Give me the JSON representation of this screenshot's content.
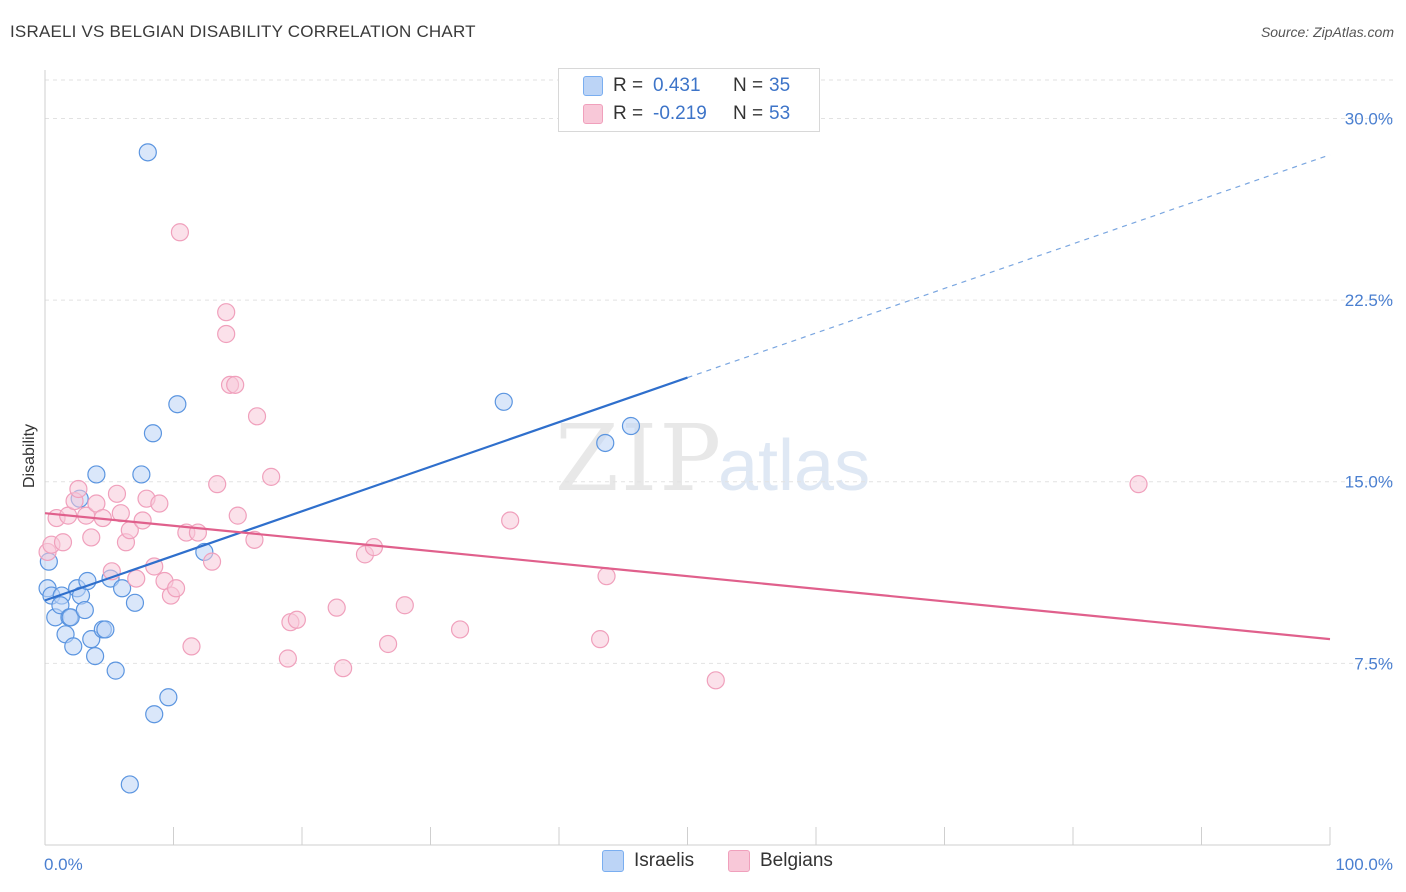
{
  "title": "ISRAELI VS BELGIAN DISABILITY CORRELATION CHART",
  "source": "Source: ZipAtlas.com",
  "watermark": {
    "zip": "ZIP",
    "atlas": "atlas"
  },
  "legend": {
    "rows": [
      {
        "r_label": "R =",
        "r_value": "0.431",
        "n_label": "N =",
        "n_value": "35",
        "color": "#7aaef0",
        "fill": "#bcd4f6"
      },
      {
        "r_label": "R =",
        "r_value": "-0.219",
        "n_label": "N =",
        "n_value": "53",
        "color": "#f0a0bc",
        "fill": "#f8c8d8"
      }
    ]
  },
  "bottom_legend": [
    {
      "label": "Israelis",
      "fill": "#bcd4f6",
      "stroke": "#7aaef0"
    },
    {
      "label": "Belgians",
      "fill": "#f8c8d8",
      "stroke": "#f0a0bc"
    }
  ],
  "chart_data": {
    "type": "scatter",
    "xlabel": "",
    "ylabel": "Disability",
    "xlim": [
      0,
      100
    ],
    "ylim": [
      0,
      32
    ],
    "x_tick_labels": [
      "0.0%",
      "100.0%"
    ],
    "y_ticks": [
      7.5,
      15.0,
      22.5,
      30.0
    ],
    "y_tick_labels": [
      "7.5%",
      "15.0%",
      "22.5%",
      "30.0%"
    ],
    "grid": true,
    "legend_placement": "top-center",
    "series": [
      {
        "name": "Israelis",
        "color": "#5b95e0",
        "fill": "#bcd4f6",
        "trend": {
          "x0": 0,
          "y0": 10.1,
          "x1": 50,
          "y1": 19.3,
          "dash_to_x": 100,
          "dash_to_y": 28.5,
          "color": "#2f6fcc"
        },
        "points": [
          [
            0.2,
            10.6
          ],
          [
            0.5,
            10.3
          ],
          [
            1.3,
            10.3
          ],
          [
            0.8,
            9.4
          ],
          [
            1.2,
            9.9
          ],
          [
            1.6,
            8.7
          ],
          [
            1.9,
            9.4
          ],
          [
            2.0,
            9.4
          ],
          [
            2.2,
            8.2
          ],
          [
            2.5,
            10.6
          ],
          [
            2.8,
            10.3
          ],
          [
            3.1,
            9.7
          ],
          [
            3.3,
            10.9
          ],
          [
            3.6,
            8.5
          ],
          [
            3.9,
            7.8
          ],
          [
            4.0,
            15.3
          ],
          [
            4.5,
            8.9
          ],
          [
            4.7,
            8.9
          ],
          [
            5.1,
            11.0
          ],
          [
            5.5,
            7.2
          ],
          [
            6.0,
            10.6
          ],
          [
            6.6,
            2.5
          ],
          [
            7.0,
            10.0
          ],
          [
            7.5,
            15.3
          ],
          [
            8.0,
            28.6
          ],
          [
            8.4,
            17.0
          ],
          [
            8.5,
            5.4
          ],
          [
            9.6,
            6.1
          ],
          [
            10.3,
            18.2
          ],
          [
            12.4,
            12.1
          ],
          [
            35.7,
            18.3
          ],
          [
            43.6,
            16.6
          ],
          [
            45.6,
            17.3
          ],
          [
            0.3,
            11.7
          ],
          [
            2.7,
            14.3
          ]
        ]
      },
      {
        "name": "Belgians",
        "color": "#f0a0bc",
        "fill": "#f8c8d8",
        "trend": {
          "x0": 0,
          "y0": 13.7,
          "x1": 100,
          "y1": 8.5,
          "color": "#e0608c"
        },
        "points": [
          [
            0.2,
            12.1
          ],
          [
            0.5,
            12.4
          ],
          [
            0.9,
            13.5
          ],
          [
            1.4,
            12.5
          ],
          [
            1.8,
            13.6
          ],
          [
            2.3,
            14.2
          ],
          [
            2.6,
            14.7
          ],
          [
            3.2,
            13.6
          ],
          [
            3.6,
            12.7
          ],
          [
            4.0,
            14.1
          ],
          [
            4.5,
            13.5
          ],
          [
            5.2,
            11.3
          ],
          [
            5.6,
            14.5
          ],
          [
            5.9,
            13.7
          ],
          [
            6.3,
            12.5
          ],
          [
            6.6,
            13.0
          ],
          [
            7.1,
            11.0
          ],
          [
            7.6,
            13.4
          ],
          [
            7.9,
            14.3
          ],
          [
            8.5,
            11.5
          ],
          [
            8.9,
            14.1
          ],
          [
            9.3,
            10.9
          ],
          [
            9.8,
            10.3
          ],
          [
            10.2,
            10.6
          ],
          [
            10.5,
            25.3
          ],
          [
            11.0,
            12.9
          ],
          [
            11.4,
            8.2
          ],
          [
            11.9,
            12.9
          ],
          [
            13.0,
            11.7
          ],
          [
            13.4,
            14.9
          ],
          [
            14.1,
            22.0
          ],
          [
            14.1,
            21.1
          ],
          [
            14.4,
            19.0
          ],
          [
            14.8,
            19.0
          ],
          [
            15.0,
            13.6
          ],
          [
            16.3,
            12.6
          ],
          [
            16.5,
            17.7
          ],
          [
            17.6,
            15.2
          ],
          [
            18.9,
            7.7
          ],
          [
            19.1,
            9.2
          ],
          [
            19.6,
            9.3
          ],
          [
            22.7,
            9.8
          ],
          [
            23.2,
            7.3
          ],
          [
            24.9,
            12.0
          ],
          [
            25.6,
            12.3
          ],
          [
            26.7,
            8.3
          ],
          [
            28.0,
            9.9
          ],
          [
            32.3,
            8.9
          ],
          [
            36.2,
            13.4
          ],
          [
            43.2,
            8.5
          ],
          [
            43.7,
            11.1
          ],
          [
            52.2,
            6.8
          ],
          [
            85.1,
            14.9
          ]
        ]
      }
    ]
  }
}
